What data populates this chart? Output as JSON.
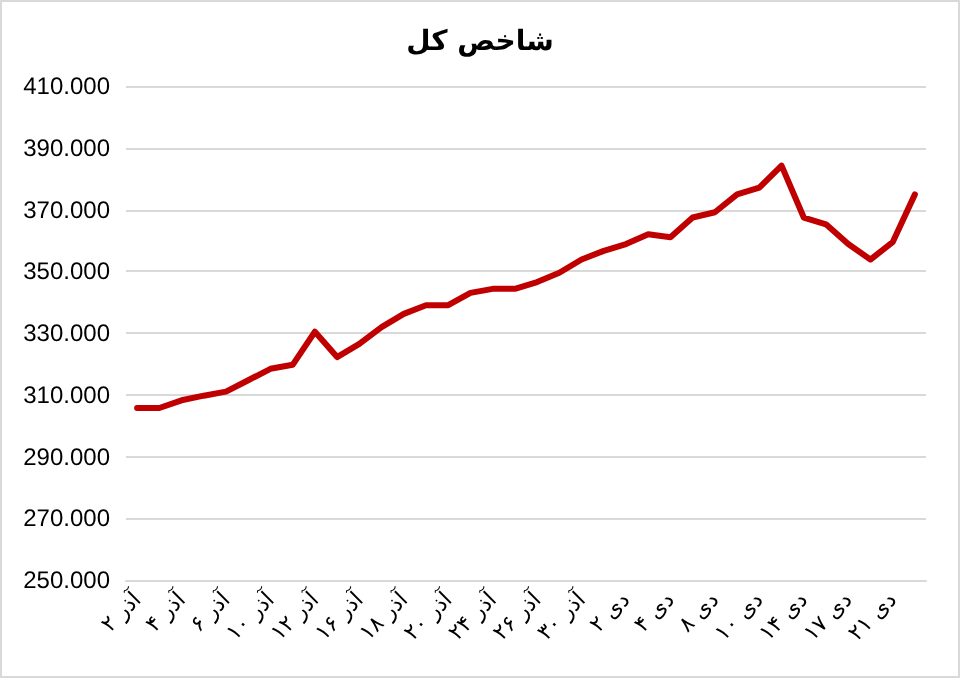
{
  "chart_data": {
    "type": "line",
    "title": "شاخص کل",
    "categories": [
      "۲ آذر",
      null,
      "۴ آذر",
      null,
      "۶ آذر",
      null,
      "۱۰ آذر",
      null,
      "۱۲ آذر",
      null,
      "۱۶ آذر",
      null,
      "۱۸ آذر",
      null,
      "۲۰ آذر",
      null,
      "۲۴ آذر",
      null,
      "۲۶ آذر",
      null,
      "۳۰ آذر",
      null,
      "۲ دی",
      null,
      "۴ دی",
      null,
      "۸ دی",
      null,
      "۱۰ دی",
      null,
      "۱۴ دی",
      null,
      "۱۷ دی",
      null,
      "۲۱ دی",
      null
    ],
    "series": [
      {
        "color": "#c00000",
        "values": [
          305700,
          305700,
          308200,
          309700,
          311000,
          314700,
          318400,
          319700,
          330400,
          322200,
          326500,
          331900,
          336200,
          339000,
          339000,
          343000,
          344300,
          344300,
          346500,
          349500,
          353800,
          356600,
          358800,
          362000,
          361000,
          367400,
          369100,
          374900,
          377100,
          384200,
          367400,
          365200,
          358800,
          353800,
          359400,
          374900
        ]
      }
    ],
    "ylim": [
      250000,
      410000
    ],
    "yticks": [
      {
        "value": 250000,
        "label": "250.000"
      },
      {
        "value": 270000,
        "label": "270.000"
      },
      {
        "value": 290000,
        "label": "290.000"
      },
      {
        "value": 310000,
        "label": "310.000"
      },
      {
        "value": 330000,
        "label": "330.000"
      },
      {
        "value": 350000,
        "label": "350.000"
      },
      {
        "value": 370000,
        "label": "370.000"
      },
      {
        "value": 390000,
        "label": "390.000"
      },
      {
        "value": 410000,
        "label": "410.000"
      }
    ],
    "grid": "y",
    "marker": "none",
    "line_style": "solid"
  }
}
